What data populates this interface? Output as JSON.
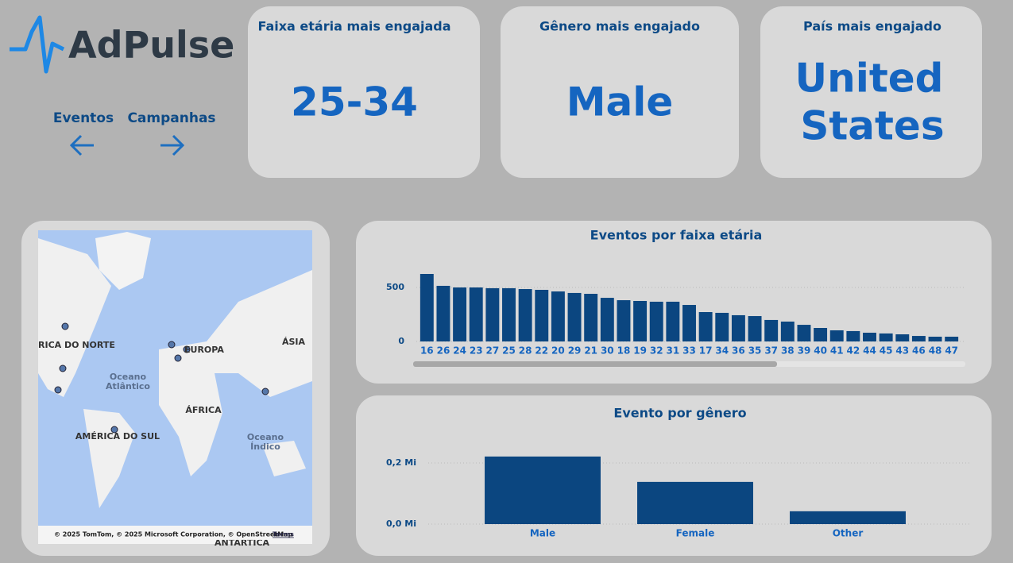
{
  "logo": "AdPulse",
  "nav": [
    "Eventos",
    "Campanhas"
  ],
  "cards": [
    {
      "title": "Faixa etária mais engajada",
      "value": "25-34"
    },
    {
      "title": "Gênero mais engajado",
      "value": "Male"
    },
    {
      "title": "País mais engajado",
      "value": [
        "United",
        "States"
      ]
    }
  ],
  "map": {
    "labels": [
      "RICA DO NORTE",
      "EUROPA",
      "ÁSIA",
      "Oceano",
      "Atlântico",
      "ÁFRICA",
      "AMÉRICA DO SUL",
      "Oceano",
      "Índico",
      "ANTÁRTICA"
    ],
    "attribution": "© 2025 TomTom, © 2025 Microsoft Corporation, © OpenStreetMap",
    "terms": "Terms"
  },
  "chart_data": [
    {
      "type": "bar",
      "title": "Eventos por faixa etária",
      "color": "#0b4680",
      "categories": [
        "16",
        "26",
        "24",
        "23",
        "27",
        "25",
        "28",
        "22",
        "20",
        "29",
        "21",
        "30",
        "18",
        "19",
        "32",
        "31",
        "33",
        "17",
        "34",
        "36",
        "35",
        "37",
        "38",
        "39",
        "40",
        "41",
        "42",
        "44",
        "45",
        "43",
        "46",
        "48",
        "47"
      ],
      "values": [
        625,
        515,
        500,
        500,
        493,
        493,
        485,
        478,
        463,
        449,
        441,
        404,
        382,
        375,
        368,
        368,
        338,
        272,
        265,
        243,
        235,
        199,
        184,
        154,
        125,
        103,
        96,
        81,
        74,
        66,
        51,
        44,
        44
      ],
      "ylim": [
        0,
        650
      ],
      "yticks": [
        0,
        500
      ],
      "grid": true
    },
    {
      "type": "bar",
      "title": "Evento por gênero",
      "color": "#0b4680",
      "categories": [
        "Male",
        "Female",
        "Other"
      ],
      "values": [
        221000,
        138000,
        42000
      ],
      "ylim": [
        0,
        240000
      ],
      "yticks": [
        {
          "value": 0,
          "label": "0,0 Mi"
        },
        {
          "value": 200000,
          "label": "0,2 Mi"
        }
      ],
      "grid": true
    }
  ]
}
